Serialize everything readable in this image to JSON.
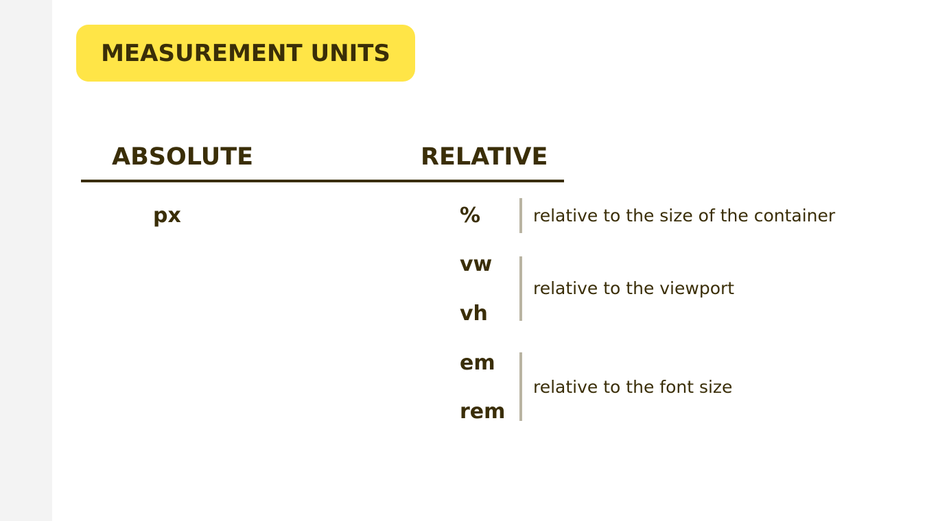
{
  "title": "MEASUREMENT UNITS",
  "columns": {
    "absolute": {
      "heading": "ABSOLUTE",
      "units": [
        "px"
      ]
    },
    "relative": {
      "heading": "RELATIVE",
      "groups": [
        {
          "units": [
            "%"
          ],
          "description": "relative to the size of the container"
        },
        {
          "units": [
            "vw",
            "vh"
          ],
          "description": "relative to the viewport"
        },
        {
          "units": [
            "em",
            "rem"
          ],
          "description": "relative to the font size"
        }
      ]
    }
  },
  "colors": {
    "badge": "#ffe547",
    "text": "#3a2e08",
    "divider": "#b9b4a2",
    "gutter": "#f3f3f3"
  }
}
